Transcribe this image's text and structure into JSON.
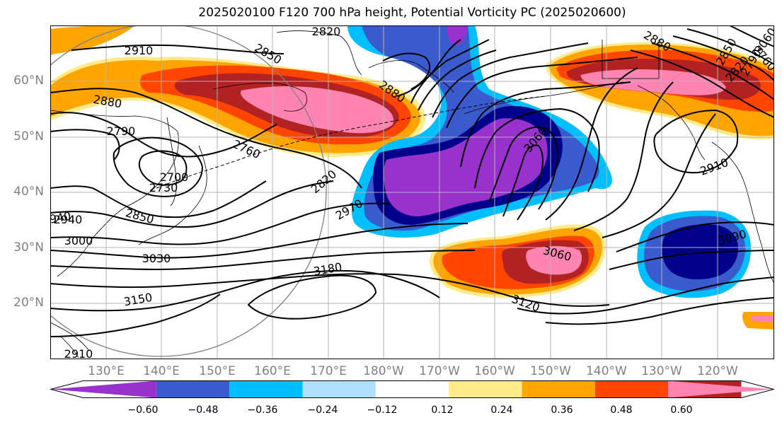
{
  "title": "2025020100 F120 700 hPa height, Potential Vorticity PC (2025020600)",
  "lat_labels": [
    "60°N",
    "50°N",
    "40°N",
    "30°N",
    "20°N"
  ],
  "lon_labels": [
    "130°E",
    "140°E",
    "150°E",
    "160°E",
    "170°E",
    "180°W",
    "170°W",
    "160°W",
    "150°W",
    "140°W",
    "130°W",
    "120°W"
  ],
  "colorbar": {
    "colors": [
      "#9932cc",
      "#00008b",
      "#3a5bcd",
      "#00bfff",
      "#b0e0ff",
      "#ffffff",
      "#ffeb8a",
      "#ffa500",
      "#ff4500",
      "#b22222",
      "#ff85b0"
    ],
    "ticks": [
      "−0.60",
      "−0.48",
      "−0.36",
      "−0.24",
      "−0.12",
      "0.12",
      "0.24",
      "0.36",
      "0.48",
      "0.60"
    ]
  },
  "contour_labels": [
    "2910",
    "2850",
    "2820",
    "2880",
    "2790",
    "2760",
    "2700",
    "2730",
    "2850",
    "2940",
    "3000",
    "3030",
    "3150",
    "3180",
    "2880",
    "2820",
    "2970",
    "3060",
    "3060",
    "3120",
    "2880",
    "2850",
    "2790",
    "2820",
    "2760",
    "2910",
    "3090",
    "3060",
    "2940",
    "2910"
  ],
  "anomalies": [
    {
      "name": "west-pacific-positive-pv",
      "color": "#ff85b0"
    },
    {
      "name": "central-pacific-negative-pv",
      "color": "#9932cc"
    },
    {
      "name": "alaska-positive-pv",
      "color": "#ff85b0"
    },
    {
      "name": "subtropical-positive-pv",
      "color": "#ff85b0"
    },
    {
      "name": "eastern-pacific-negative-pv",
      "color": "#00008b"
    }
  ]
}
